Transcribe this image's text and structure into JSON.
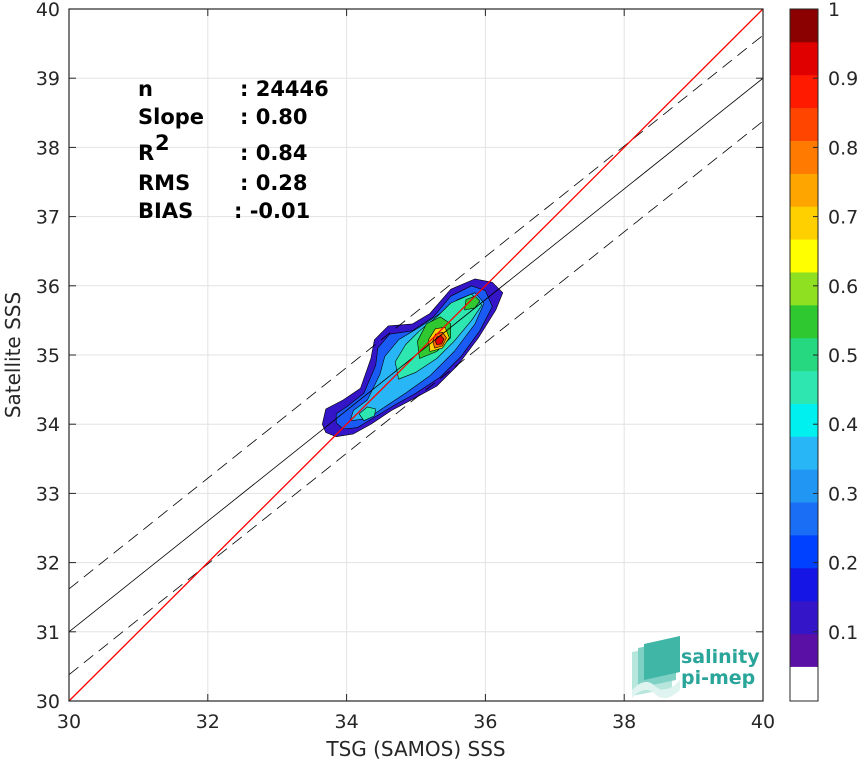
{
  "chart_data": {
    "type": "heatmap",
    "xlabel": "TSG (SAMOS) SSS",
    "ylabel": "Satellite SSS",
    "xlim": [
      30,
      40
    ],
    "ylim": [
      30,
      40
    ],
    "xticks": [
      "30",
      "32",
      "34",
      "36",
      "38",
      "40"
    ],
    "yticks": [
      "30",
      "31",
      "32",
      "33",
      "34",
      "35",
      "36",
      "37",
      "38",
      "39",
      "40"
    ],
    "grid": true,
    "stats": [
      {
        "key": "n",
        "value": ": 24446"
      },
      {
        "key": "Slope",
        "value": ": 0.80"
      },
      {
        "key": "R",
        "sup": "2",
        "value": ": 0.84"
      },
      {
        "key": "RMS",
        "value": ": 0.28"
      },
      {
        "key": "BIAS",
        "value": ": -0.01"
      }
    ],
    "identity_line": {
      "color": "#ff0000",
      "points": [
        [
          30,
          30
        ],
        [
          40,
          40
        ]
      ]
    },
    "fit_line": {
      "slope": 0.8,
      "intercept": 7.0,
      "color": "#000000"
    },
    "fit_band_offset": 0.62,
    "density_peak": {
      "x": 35.35,
      "y": 35.2
    },
    "colorbar": {
      "range": [
        0,
        1
      ],
      "ticks": [
        "0.1",
        "0.2",
        "0.3",
        "0.4",
        "0.5",
        "0.6",
        "0.7",
        "0.8",
        "0.9",
        "1"
      ],
      "levels": [
        "#ffffff",
        "#5a0fa5",
        "#3515c8",
        "#1515e6",
        "#0040ff",
        "#1a6ef5",
        "#2196f3",
        "#29b6f6",
        "#00f0f0",
        "#2ee6b0",
        "#26d880",
        "#30c830",
        "#8ee020",
        "#ffff00",
        "#ffd000",
        "#ffa500",
        "#ff7a00",
        "#ff4500",
        "#ff1a00",
        "#e00000",
        "#8b0000"
      ]
    },
    "contours": [
      {
        "level": 0.05,
        "color": "#3515c8",
        "points": [
          [
            33.65,
            34.0
          ],
          [
            33.7,
            33.88
          ],
          [
            33.85,
            33.82
          ],
          [
            34.1,
            33.86
          ],
          [
            34.35,
            34.0
          ],
          [
            34.65,
            34.2
          ],
          [
            34.95,
            34.36
          ],
          [
            35.3,
            34.55
          ],
          [
            35.6,
            34.85
          ],
          [
            35.9,
            35.25
          ],
          [
            36.15,
            35.65
          ],
          [
            36.25,
            35.9
          ],
          [
            36.1,
            36.05
          ],
          [
            35.85,
            36.1
          ],
          [
            35.5,
            35.95
          ],
          [
            35.2,
            35.6
          ],
          [
            34.95,
            35.45
          ],
          [
            34.6,
            35.42
          ],
          [
            34.4,
            35.22
          ],
          [
            34.35,
            34.95
          ],
          [
            34.2,
            34.52
          ],
          [
            33.95,
            34.35
          ],
          [
            33.7,
            34.22
          ]
        ]
      },
      {
        "level": 0.15,
        "color": "#1a5af5",
        "points": [
          [
            33.85,
            34.02
          ],
          [
            33.95,
            33.93
          ],
          [
            34.15,
            33.95
          ],
          [
            34.4,
            34.1
          ],
          [
            34.7,
            34.28
          ],
          [
            35.0,
            34.45
          ],
          [
            35.35,
            34.68
          ],
          [
            35.65,
            34.98
          ],
          [
            35.92,
            35.35
          ],
          [
            36.1,
            35.7
          ],
          [
            36.0,
            35.93
          ],
          [
            35.8,
            36.0
          ],
          [
            35.5,
            35.85
          ],
          [
            35.25,
            35.55
          ],
          [
            34.95,
            35.35
          ],
          [
            34.62,
            35.3
          ],
          [
            34.45,
            35.1
          ],
          [
            34.42,
            34.85
          ],
          [
            34.25,
            34.45
          ],
          [
            34.0,
            34.25
          ],
          [
            33.85,
            34.15
          ]
        ]
      },
      {
        "level": 0.25,
        "color": "#29b6f6",
        "points": [
          [
            34.05,
            34.05
          ],
          [
            34.3,
            34.08
          ],
          [
            34.55,
            34.25
          ],
          [
            34.85,
            34.45
          ],
          [
            35.2,
            34.7
          ],
          [
            35.55,
            35.05
          ],
          [
            35.85,
            35.45
          ],
          [
            35.98,
            35.75
          ],
          [
            35.85,
            35.9
          ],
          [
            35.6,
            35.8
          ],
          [
            35.35,
            35.6
          ],
          [
            35.05,
            35.4
          ],
          [
            34.75,
            35.22
          ],
          [
            34.55,
            34.98
          ],
          [
            34.48,
            34.72
          ],
          [
            34.3,
            34.35
          ],
          [
            34.1,
            34.2
          ]
        ]
      },
      {
        "level": 0.35,
        "color": "#2ee6b0",
        "points": [
          [
            34.75,
            34.65
          ],
          [
            35.0,
            34.75
          ],
          [
            35.3,
            34.95
          ],
          [
            35.55,
            35.2
          ],
          [
            35.8,
            35.5
          ],
          [
            35.95,
            35.72
          ],
          [
            35.8,
            35.88
          ],
          [
            35.5,
            35.75
          ],
          [
            35.3,
            35.55
          ],
          [
            35.05,
            35.35
          ],
          [
            34.85,
            35.15
          ],
          [
            34.7,
            34.9
          ]
        ]
      },
      {
        "level": 0.5,
        "color": "#30c830",
        "points": [
          [
            35.05,
            34.95
          ],
          [
            35.3,
            35.05
          ],
          [
            35.5,
            35.25
          ],
          [
            35.5,
            35.45
          ],
          [
            35.35,
            35.55
          ],
          [
            35.15,
            35.45
          ],
          [
            35.02,
            35.2
          ]
        ]
      },
      {
        "level": 0.65,
        "color": "#ffd000",
        "points": [
          [
            35.2,
            35.05
          ],
          [
            35.38,
            35.1
          ],
          [
            35.48,
            35.25
          ],
          [
            35.42,
            35.4
          ],
          [
            35.28,
            35.38
          ],
          [
            35.18,
            35.22
          ]
        ]
      },
      {
        "level": 0.8,
        "color": "#ff6a00",
        "points": [
          [
            35.27,
            35.1
          ],
          [
            35.38,
            35.13
          ],
          [
            35.44,
            35.25
          ],
          [
            35.38,
            35.33
          ],
          [
            35.28,
            35.3
          ],
          [
            35.24,
            35.2
          ]
        ]
      },
      {
        "level": 0.92,
        "color": "#e00000",
        "points": [
          [
            35.3,
            35.15
          ],
          [
            35.37,
            35.16
          ],
          [
            35.4,
            35.23
          ],
          [
            35.36,
            35.28
          ],
          [
            35.3,
            35.26
          ],
          [
            35.28,
            35.2
          ]
        ]
      },
      {
        "level": 0.35,
        "color": "#2ee6b0",
        "points": [
          [
            34.25,
            34.05
          ],
          [
            34.4,
            34.12
          ],
          [
            34.42,
            34.22
          ],
          [
            34.3,
            34.25
          ],
          [
            34.18,
            34.15
          ]
        ]
      },
      {
        "level": 0.4,
        "color": "#30c830",
        "points": [
          [
            35.7,
            35.65
          ],
          [
            35.85,
            35.68
          ],
          [
            35.92,
            35.78
          ],
          [
            35.85,
            35.85
          ],
          [
            35.72,
            35.8
          ]
        ]
      }
    ]
  },
  "logo": {
    "line1": "salinity",
    "line2": "pi-mep"
  }
}
